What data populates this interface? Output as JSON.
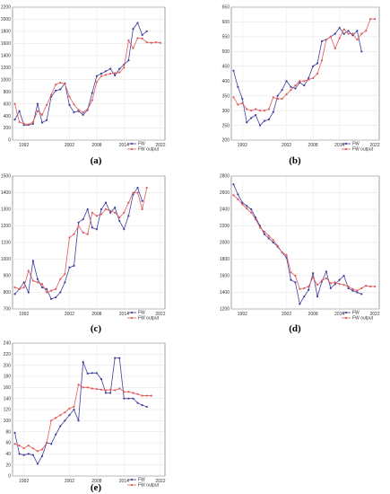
{
  "colors": {
    "fw": "#3f3f9f",
    "fw_output": "#e05a5a"
  },
  "chart_data": [
    {
      "panel": "(a)",
      "type": "line",
      "x": [
        1990,
        1991,
        1992,
        1993,
        1994,
        1995,
        1996,
        1997,
        1998,
        1999,
        2000,
        2001,
        2002,
        2003,
        2004,
        2005,
        2006,
        2007,
        2008,
        2009,
        2010,
        2011,
        2012,
        2013,
        2014,
        2015,
        2016,
        2017,
        2018,
        2019,
        2020,
        2021,
        2022
      ],
      "x_ticks": [
        "1992",
        "2002",
        "2008",
        "2014",
        "2022"
      ],
      "x_tick_values": [
        1992,
        2002,
        2008,
        2014,
        2022
      ],
      "ylim": [
        0,
        2200
      ],
      "y_ticks": [
        "0",
        "200",
        "400",
        "600",
        "800",
        "1000",
        "1200",
        "1400",
        "1600",
        "1800",
        "2000",
        "2200"
      ],
      "y_tick_values": [
        0,
        200,
        400,
        600,
        800,
        1000,
        1200,
        1400,
        1600,
        1800,
        2000,
        2200
      ],
      "series": [
        {
          "name": "FW",
          "values": [
            340,
            480,
            250,
            250,
            270,
            600,
            290,
            330,
            720,
            820,
            840,
            940,
            580,
            460,
            480,
            420,
            500,
            780,
            1060,
            1100,
            1140,
            1180,
            1070,
            1180,
            1250,
            1320,
            1840,
            1940,
            1740,
            1800,
            null,
            null,
            null
          ]
        },
        {
          "name": "FW output",
          "values": [
            600,
            300,
            270,
            260,
            300,
            480,
            420,
            580,
            750,
            920,
            950,
            930,
            720,
            590,
            500,
            460,
            510,
            660,
            960,
            1060,
            1080,
            1100,
            1110,
            1120,
            1200,
            1650,
            1520,
            1690,
            1680,
            1620,
            1610,
            1620,
            1610
          ]
        }
      ],
      "legend": "bottom-right",
      "grid": true
    },
    {
      "panel": "(b)",
      "type": "line",
      "x": [
        1990,
        1991,
        1992,
        1993,
        1994,
        1995,
        1996,
        1997,
        1998,
        1999,
        2000,
        2001,
        2002,
        2003,
        2004,
        2005,
        2006,
        2007,
        2008,
        2009,
        2010,
        2011,
        2012,
        2013,
        2014,
        2015,
        2016,
        2017,
        2018,
        2019,
        2020,
        2021,
        2022
      ],
      "x_ticks": [
        "1992",
        "2002",
        "2008",
        "2014",
        "2022"
      ],
      "x_tick_values": [
        1992,
        2002,
        2008,
        2014,
        2022
      ],
      "ylim": [
        200,
        650
      ],
      "y_ticks": [
        "200",
        "250",
        "300",
        "350",
        "400",
        "450",
        "500",
        "550",
        "600",
        "650"
      ],
      "y_tick_values": [
        200,
        250,
        300,
        350,
        400,
        450,
        500,
        550,
        600,
        650
      ],
      "series": [
        {
          "name": "FW",
          "values": [
            435,
            380,
            340,
            260,
            275,
            285,
            250,
            265,
            270,
            295,
            350,
            370,
            400,
            380,
            375,
            395,
            385,
            410,
            450,
            460,
            535,
            540,
            550,
            560,
            580,
            560,
            570,
            555,
            570,
            500,
            null,
            null,
            null
          ]
        },
        {
          "name": "FW output",
          "values": [
            345,
            320,
            325,
            305,
            300,
            305,
            300,
            300,
            305,
            345,
            340,
            340,
            355,
            370,
            385,
            400,
            400,
            405,
            410,
            425,
            470,
            540,
            550,
            510,
            545,
            575,
            560,
            560,
            540,
            560,
            570,
            610,
            610
          ]
        }
      ],
      "legend": "bottom-right",
      "grid": true
    },
    {
      "panel": "(c)",
      "type": "line",
      "x": [
        1990,
        1991,
        1992,
        1993,
        1994,
        1995,
        1996,
        1997,
        1998,
        1999,
        2000,
        2001,
        2002,
        2003,
        2004,
        2005,
        2006,
        2007,
        2008,
        2009,
        2010,
        2011,
        2012,
        2013,
        2014,
        2015,
        2016,
        2017,
        2018,
        2019,
        2020,
        2021,
        2022
      ],
      "x_ticks": [
        "1992",
        "2002",
        "2008",
        "2014",
        "2022"
      ],
      "x_tick_values": [
        1992,
        2002,
        2008,
        2014,
        2022
      ],
      "ylim": [
        700,
        1500
      ],
      "y_ticks": [
        "700",
        "800",
        "900",
        "1000",
        "1100",
        "1200",
        "1300",
        "1400",
        "1500"
      ],
      "y_tick_values": [
        700,
        800,
        900,
        1000,
        1100,
        1200,
        1300,
        1400,
        1500
      ],
      "series": [
        {
          "name": "FW",
          "values": [
            790,
            820,
            860,
            800,
            990,
            880,
            830,
            820,
            760,
            770,
            800,
            860,
            950,
            960,
            1220,
            1240,
            1300,
            1190,
            1180,
            1300,
            1340,
            1280,
            1310,
            1230,
            1180,
            1260,
            1390,
            1430,
            1350,
            null,
            null,
            null,
            null
          ]
        },
        {
          "name": "FW output",
          "values": [
            830,
            820,
            830,
            930,
            870,
            860,
            850,
            800,
            810,
            820,
            880,
            910,
            1130,
            1150,
            1200,
            1160,
            1150,
            1280,
            1260,
            1270,
            1300,
            1290,
            1280,
            1250,
            1280,
            1340,
            1400,
            1400,
            1300,
            1430,
            null,
            null,
            null
          ]
        }
      ],
      "legend": "bottom-right",
      "grid": true
    },
    {
      "panel": "(d)",
      "type": "line",
      "x": [
        1990,
        1991,
        1992,
        1993,
        1994,
        1995,
        1996,
        1997,
        1998,
        1999,
        2000,
        2001,
        2002,
        2003,
        2004,
        2005,
        2006,
        2007,
        2008,
        2009,
        2010,
        2011,
        2012,
        2013,
        2014,
        2015,
        2016,
        2017,
        2018,
        2019,
        2020,
        2021,
        2022
      ],
      "x_ticks": [
        "1992",
        "2002",
        "2008",
        "2014",
        "2022"
      ],
      "x_tick_values": [
        1992,
        2002,
        2008,
        2014,
        2022
      ],
      "ylim": [
        1200,
        2800
      ],
      "y_ticks": [
        "1200",
        "1400",
        "1600",
        "1800",
        "2000",
        "2200",
        "2400",
        "2600",
        "2800"
      ],
      "y_tick_values": [
        1200,
        1400,
        1600,
        1800,
        2000,
        2200,
        2400,
        2600,
        2800
      ],
      "series": [
        {
          "name": "FW",
          "values": [
            2700,
            2580,
            2480,
            2440,
            2400,
            2300,
            2200,
            2100,
            2050,
            2000,
            1950,
            1880,
            1820,
            1550,
            1520,
            1260,
            1350,
            1430,
            1630,
            1350,
            1530,
            1650,
            1450,
            1500,
            1550,
            1600,
            1450,
            1420,
            1400,
            1380,
            null,
            null,
            null
          ]
        },
        {
          "name": "FW output",
          "values": [
            2570,
            2520,
            2460,
            2410,
            2360,
            2280,
            2180,
            2130,
            2080,
            2030,
            1960,
            1880,
            1850,
            1640,
            1600,
            1440,
            1450,
            1470,
            1580,
            1490,
            1540,
            1570,
            1510,
            1520,
            1500,
            1490,
            1470,
            1440,
            1420,
            1450,
            1480,
            1470,
            1470
          ]
        }
      ],
      "legend": "bottom-right",
      "grid": true
    },
    {
      "panel": "(e)",
      "type": "line",
      "x": [
        1990,
        1991,
        1992,
        1993,
        1994,
        1995,
        1996,
        1997,
        1998,
        1999,
        2000,
        2001,
        2002,
        2003,
        2004,
        2005,
        2006,
        2007,
        2008,
        2009,
        2010,
        2011,
        2012,
        2013,
        2014,
        2015,
        2016,
        2017,
        2018,
        2019,
        2020,
        2021,
        2022
      ],
      "x_ticks": [
        "1992",
        "2002",
        "2008",
        "2014",
        "2022"
      ],
      "x_tick_values": [
        1992,
        2002,
        2008,
        2014,
        2022
      ],
      "ylim": [
        0,
        240
      ],
      "y_ticks": [
        "0",
        "20",
        "40",
        "60",
        "80",
        "100",
        "120",
        "140",
        "160",
        "180",
        "200",
        "220",
        "240"
      ],
      "y_tick_values": [
        0,
        20,
        40,
        60,
        80,
        100,
        120,
        140,
        160,
        180,
        200,
        220,
        240
      ],
      "series": [
        {
          "name": "FW",
          "values": [
            78,
            40,
            38,
            40,
            38,
            22,
            36,
            60,
            58,
            75,
            90,
            100,
            110,
            120,
            100,
            206,
            185,
            186,
            186,
            175,
            150,
            150,
            213,
            213,
            140,
            140,
            140,
            132,
            128,
            125,
            null,
            null,
            null
          ]
        },
        {
          "name": "FW output",
          "values": [
            58,
            55,
            50,
            55,
            50,
            45,
            48,
            60,
            100,
            105,
            110,
            115,
            122,
            125,
            165,
            160,
            160,
            158,
            157,
            156,
            155,
            156,
            155,
            158,
            152,
            152,
            150,
            148,
            145,
            145,
            145,
            null,
            null
          ]
        }
      ],
      "legend": "bottom-right",
      "grid": true
    }
  ]
}
